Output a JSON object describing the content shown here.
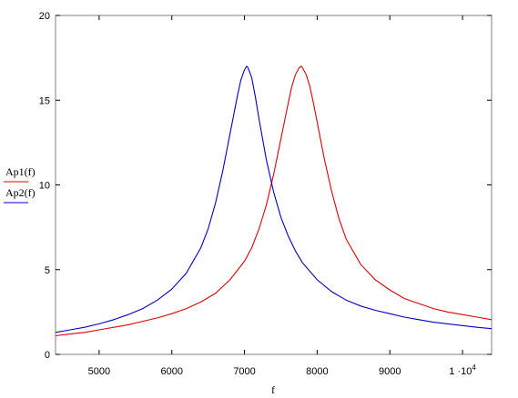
{
  "chart_data": {
    "type": "line",
    "xlabel": "f",
    "ylabel": "",
    "xlim": [
      4400,
      10400
    ],
    "ylim": [
      0,
      20
    ],
    "grid": false,
    "legend_position": "left",
    "x_ticks": [
      {
        "value": 5000,
        "label": "5000"
      },
      {
        "value": 6000,
        "label": "6000"
      },
      {
        "value": 7000,
        "label": "7000"
      },
      {
        "value": 8000,
        "label": "8000"
      },
      {
        "value": 9000,
        "label": "9000"
      },
      {
        "value": 10000,
        "label": "1 ·10",
        "exponent": "4"
      }
    ],
    "y_ticks": [
      {
        "value": 0,
        "label": "0"
      },
      {
        "value": 5,
        "label": "5"
      },
      {
        "value": 10,
        "label": "10"
      },
      {
        "value": 15,
        "label": "15"
      },
      {
        "value": 20,
        "label": "20"
      }
    ],
    "series": [
      {
        "name": "Ap1(f)",
        "color": "#e00000",
        "x": [
          4400,
          4600,
          4800,
          5000,
          5200,
          5400,
          5600,
          5800,
          6000,
          6200,
          6400,
          6600,
          6800,
          7000,
          7100,
          7200,
          7300,
          7400,
          7500,
          7600,
          7650,
          7700,
          7750,
          7780,
          7800,
          7850,
          7900,
          7950,
          8000,
          8100,
          8200,
          8300,
          8400,
          8600,
          8800,
          9000,
          9200,
          9400,
          9600,
          9800,
          10000,
          10200,
          10400
        ],
        "values": [
          1.1,
          1.2,
          1.3,
          1.45,
          1.6,
          1.75,
          1.95,
          2.15,
          2.4,
          2.7,
          3.1,
          3.6,
          4.4,
          5.5,
          6.3,
          7.4,
          8.8,
          10.6,
          12.7,
          14.8,
          15.8,
          16.5,
          16.9,
          17.0,
          16.9,
          16.5,
          15.8,
          14.8,
          13.7,
          11.5,
          9.6,
          8.0,
          6.8,
          5.3,
          4.4,
          3.8,
          3.3,
          3.0,
          2.7,
          2.5,
          2.35,
          2.2,
          2.05
        ]
      },
      {
        "name": "Ap2(f)",
        "color": "#0000c8",
        "x": [
          4400,
          4600,
          4800,
          5000,
          5200,
          5400,
          5600,
          5800,
          6000,
          6200,
          6400,
          6500,
          6600,
          6700,
          6800,
          6900,
          6950,
          7000,
          7030,
          7050,
          7100,
          7150,
          7200,
          7300,
          7400,
          7500,
          7600,
          7700,
          7800,
          8000,
          8200,
          8400,
          8600,
          8800,
          9000,
          9200,
          9400,
          9600,
          9800,
          10000,
          10200,
          10400
        ],
        "values": [
          1.3,
          1.45,
          1.6,
          1.8,
          2.05,
          2.35,
          2.7,
          3.2,
          3.85,
          4.8,
          6.3,
          7.4,
          8.9,
          10.8,
          13.0,
          15.2,
          16.2,
          16.8,
          17.0,
          16.9,
          16.3,
          15.2,
          13.9,
          11.5,
          9.6,
          8.1,
          7.0,
          6.1,
          5.4,
          4.4,
          3.7,
          3.2,
          2.85,
          2.6,
          2.4,
          2.2,
          2.05,
          1.9,
          1.8,
          1.7,
          1.6,
          1.52
        ]
      }
    ]
  }
}
